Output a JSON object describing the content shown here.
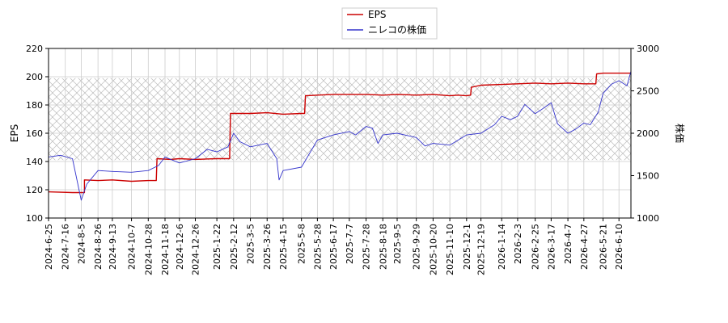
{
  "chart_data": {
    "type": "line",
    "legend": {
      "placement": "top-center",
      "entries": [
        "EPS",
        "ニレコの株価"
      ]
    },
    "xlabel": "",
    "ylabel_left": "EPS",
    "ylabel_right": "株価",
    "x_ticks": [
      "2024-6-25",
      "2024-7-16",
      "2024-8-5",
      "2024-8-26",
      "2024-9-13",
      "2024-10-7",
      "2024-10-28",
      "2024-11-18",
      "2024-12-6",
      "2024-12-26",
      "2025-1-22",
      "2025-2-12",
      "2025-3-5",
      "2025-3-26",
      "2025-4-15",
      "2025-5-8",
      "2025-5-28",
      "2025-6-17",
      "2025-7-7",
      "2025-7-28",
      "2025-8-18",
      "2025-9-5",
      "2025-9-29",
      "2025-10-20",
      "2025-11-10",
      "2025-12-1",
      "2025-12-19",
      "2026-1-14",
      "2026-2-3",
      "2026-2-25",
      "2026-3-17",
      "2026-4-7",
      "2026-4-27",
      "2026-5-21",
      "2026-6-10"
    ],
    "y_left": {
      "lim": [
        100,
        220
      ],
      "ticks": [
        100,
        120,
        140,
        160,
        180,
        200,
        220
      ]
    },
    "y_right": {
      "lim": [
        1000,
        3000
      ],
      "ticks": [
        1000,
        1500,
        2000,
        2500,
        3000
      ]
    },
    "grid": true,
    "shaded_band": {
      "axis": "left",
      "from": 141,
      "to": 199,
      "pattern": "crosshatch"
    },
    "series": [
      {
        "name": "EPS",
        "axis": "left",
        "color": "#cc0000",
        "points": [
          [
            "2024-6-25",
            118.5
          ],
          [
            "2024-7-25",
            118
          ],
          [
            "2024-8-9",
            118
          ],
          [
            "2024-8-9",
            127
          ],
          [
            "2024-8-26",
            126.5
          ],
          [
            "2024-9-13",
            127
          ],
          [
            "2024-10-7",
            126
          ],
          [
            "2024-10-28",
            126.5
          ],
          [
            "2024-11-7",
            126.5
          ],
          [
            "2024-11-8",
            142
          ],
          [
            "2024-11-25",
            141.5
          ],
          [
            "2024-12-6",
            142
          ],
          [
            "2024-12-26",
            141.5
          ],
          [
            "2025-1-22",
            142
          ],
          [
            "2025-2-7",
            142
          ],
          [
            "2025-2-8",
            174
          ],
          [
            "2025-3-5",
            174
          ],
          [
            "2025-3-26",
            174.5
          ],
          [
            "2025-4-15",
            173.5
          ],
          [
            "2025-5-8",
            174
          ],
          [
            "2025-5-12",
            174
          ],
          [
            "2025-5-13",
            186.5
          ],
          [
            "2025-5-28",
            187
          ],
          [
            "2025-6-17",
            187.5
          ],
          [
            "2025-7-7",
            187.5
          ],
          [
            "2025-7-28",
            187.5
          ],
          [
            "2025-8-18",
            187
          ],
          [
            "2025-9-5",
            187.5
          ],
          [
            "2025-9-29",
            187
          ],
          [
            "2025-10-20",
            187.5
          ],
          [
            "2025-11-10",
            186.5
          ],
          [
            "2025-11-20",
            187
          ],
          [
            "2025-12-1",
            186.5
          ],
          [
            "2025-12-6",
            187
          ],
          [
            "2025-12-7",
            192.5
          ],
          [
            "2025-12-19",
            194
          ],
          [
            "2026-1-14",
            194.5
          ],
          [
            "2026-2-3",
            195
          ],
          [
            "2026-2-25",
            195.5
          ],
          [
            "2026-3-17",
            195
          ],
          [
            "2026-4-7",
            195.5
          ],
          [
            "2026-4-27",
            195
          ],
          [
            "2026-5-12",
            195
          ],
          [
            "2026-5-13",
            202
          ],
          [
            "2026-5-21",
            202.5
          ],
          [
            "2026-6-10",
            202.5
          ],
          [
            "2026-6-25",
            202.5
          ]
        ]
      },
      {
        "name": "ニレコの株価",
        "axis": "right",
        "color": "#3333cc",
        "points": [
          [
            "2024-6-25",
            1720
          ],
          [
            "2024-7-10",
            1740
          ],
          [
            "2024-7-25",
            1700
          ],
          [
            "2024-8-5",
            1210
          ],
          [
            "2024-8-12",
            1400
          ],
          [
            "2024-8-26",
            1560
          ],
          [
            "2024-9-13",
            1550
          ],
          [
            "2024-10-7",
            1540
          ],
          [
            "2024-10-28",
            1560
          ],
          [
            "2024-11-10",
            1620
          ],
          [
            "2024-11-18",
            1720
          ],
          [
            "2024-12-6",
            1650
          ],
          [
            "2024-12-26",
            1700
          ],
          [
            "2025-1-10",
            1810
          ],
          [
            "2025-1-22",
            1780
          ],
          [
            "2025-2-5",
            1840
          ],
          [
            "2025-2-12",
            2000
          ],
          [
            "2025-2-20",
            1900
          ],
          [
            "2025-3-5",
            1840
          ],
          [
            "2025-3-26",
            1880
          ],
          [
            "2025-4-7",
            1700
          ],
          [
            "2025-4-10",
            1450
          ],
          [
            "2025-4-15",
            1560
          ],
          [
            "2025-5-8",
            1600
          ],
          [
            "2025-5-28",
            1920
          ],
          [
            "2025-6-17",
            1980
          ],
          [
            "2025-7-7",
            2020
          ],
          [
            "2025-7-15",
            1980
          ],
          [
            "2025-7-28",
            2080
          ],
          [
            "2025-8-5",
            2060
          ],
          [
            "2025-8-12",
            1880
          ],
          [
            "2025-8-18",
            1980
          ],
          [
            "2025-9-5",
            2000
          ],
          [
            "2025-9-29",
            1950
          ],
          [
            "2025-10-10",
            1850
          ],
          [
            "2025-10-20",
            1880
          ],
          [
            "2025-11-10",
            1860
          ],
          [
            "2025-12-1",
            1980
          ],
          [
            "2025-12-19",
            2000
          ],
          [
            "2026-1-5",
            2100
          ],
          [
            "2026-1-14",
            2200
          ],
          [
            "2026-1-25",
            2160
          ],
          [
            "2026-2-3",
            2200
          ],
          [
            "2026-2-12",
            2340
          ],
          [
            "2026-2-25",
            2230
          ],
          [
            "2026-3-5",
            2280
          ],
          [
            "2026-3-17",
            2360
          ],
          [
            "2026-3-25",
            2110
          ],
          [
            "2026-4-7",
            2000
          ],
          [
            "2026-4-17",
            2050
          ],
          [
            "2026-4-27",
            2120
          ],
          [
            "2026-5-5",
            2100
          ],
          [
            "2026-5-15",
            2250
          ],
          [
            "2026-5-21",
            2470
          ],
          [
            "2026-6-1",
            2580
          ],
          [
            "2026-6-10",
            2620
          ],
          [
            "2026-6-20",
            2560
          ],
          [
            "2026-6-25",
            2730
          ]
        ]
      }
    ]
  }
}
